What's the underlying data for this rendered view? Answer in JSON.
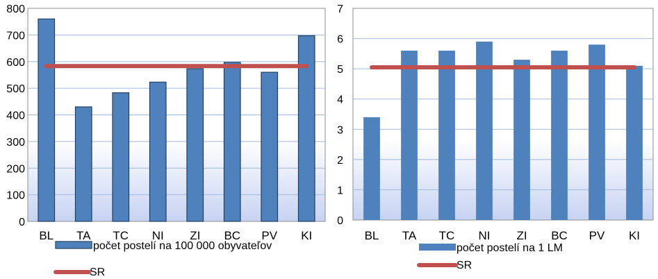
{
  "chart_data": [
    {
      "type": "bar",
      "categories": [
        "BL",
        "TA",
        "TC",
        "NI",
        "ZI",
        "BC",
        "PV",
        "KI"
      ],
      "series": [
        {
          "name": "počet postelí na 100 000 obyvateľov",
          "kind": "bar",
          "color": "#4f81bd",
          "values": [
            760,
            430,
            483,
            523,
            573,
            597,
            560,
            697
          ]
        },
        {
          "name": "SR",
          "kind": "line",
          "color": "#c0504d",
          "values": [
            583,
            583,
            583,
            583,
            583,
            583,
            583,
            583
          ]
        }
      ],
      "yticks": [
        "0",
        "100",
        "200",
        "300",
        "400",
        "500",
        "600",
        "700",
        "800"
      ],
      "ylim": [
        0,
        800
      ],
      "grid": true,
      "legend": "bottom",
      "bar_outline": true
    },
    {
      "type": "bar",
      "categories": [
        "BL",
        "TA",
        "TC",
        "NI",
        "ZI",
        "BC",
        "PV",
        "KI"
      ],
      "series": [
        {
          "name": "počet postelí na 1 LM",
          "kind": "bar",
          "color": "#4f81bd",
          "values": [
            3.4,
            5.6,
            5.6,
            5.9,
            5.3,
            5.6,
            5.8,
            5.1
          ]
        },
        {
          "name": "SR",
          "kind": "line",
          "color": "#c0504d",
          "values": [
            5.05,
            5.05,
            5.05,
            5.05,
            5.05,
            5.05,
            5.05,
            5.05
          ]
        }
      ],
      "yticks": [
        "0",
        "1",
        "2",
        "3",
        "4",
        "5",
        "6",
        "7"
      ],
      "ylim": [
        0,
        7
      ],
      "grid": true,
      "legend": "bottom",
      "bar_outline": false
    }
  ]
}
